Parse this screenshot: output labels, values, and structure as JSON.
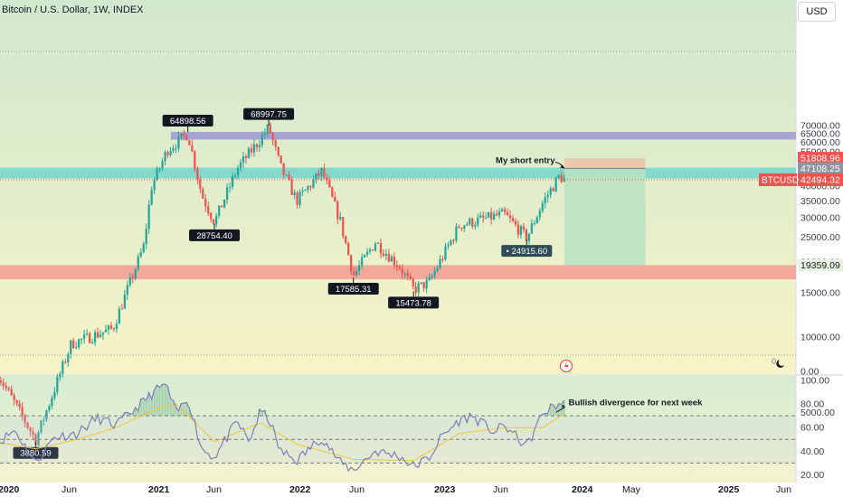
{
  "header": {
    "title": "Bitcoin / U.S. Dollar, 1W, INDEX",
    "currency_button": "USD"
  },
  "colors": {
    "up": "#26a69a",
    "down": "#ef5350",
    "bg_top": "#d2e8cf",
    "bg_bottom": "#f7f4c6",
    "purple_zone": "#a3a0d4",
    "teal_zone": "#7fd8cb",
    "red_zone": "#f2a398",
    "rsi_line": "#7e7fb8",
    "rsi_ma": "#f0c43a"
  },
  "chart_data": [
    {
      "type": "candlestick",
      "title": "Bitcoin / U.S. Dollar, 1W, INDEX",
      "y_scale": "log",
      "y_axis_ticks": [
        "70000.00",
        "65000.00",
        "60000.00",
        "55000.00",
        "50000.00",
        "45000.00",
        "40000.00",
        "35000.00",
        "30000.00",
        "25000.00",
        "20000.00",
        "15000.00",
        "10000.00",
        "5000.00",
        "0.00"
      ],
      "x_axis_labels": [
        "2020",
        "Jun",
        "2021",
        "Jun",
        "2022",
        "Jun",
        "2023",
        "Jun",
        "2024",
        "May",
        "2025",
        "Jun"
      ],
      "price_path": [
        [
          "2019-12-01",
          7400
        ],
        [
          "2020-03-15",
          3880.59
        ],
        [
          "2020-06-15",
          9400
        ],
        [
          "2020-10-01",
          10800
        ],
        [
          "2020-12-20",
          23000
        ],
        [
          "2021-01-10",
          40000
        ],
        [
          "2021-02-20",
          56000
        ],
        [
          "2021-04-14",
          64898.56
        ],
        [
          "2021-05-20",
          37000
        ],
        [
          "2021-06-22",
          28754.4
        ],
        [
          "2021-08-20",
          47000
        ],
        [
          "2021-10-20",
          62000
        ],
        [
          "2021-11-10",
          68997.75
        ],
        [
          "2021-12-10",
          48000
        ],
        [
          "2022-01-22",
          35000
        ],
        [
          "2022-03-28",
          46000
        ],
        [
          "2022-05-15",
          29000
        ],
        [
          "2022-06-18",
          17585.31
        ],
        [
          "2022-08-14",
          24000
        ],
        [
          "2022-10-15",
          19200
        ],
        [
          "2022-11-21",
          15473.78
        ],
        [
          "2022-12-31",
          16500
        ],
        [
          "2023-03-20",
          28000
        ],
        [
          "2023-07-14",
          31000
        ],
        [
          "2023-09-11",
          24915.6
        ],
        [
          "2023-10-23",
          34500
        ],
        [
          "2023-12-05",
          44000
        ],
        [
          "2023-12-18",
          42494.32
        ]
      ],
      "high_low_labels": [
        {
          "date": "2020-03-15",
          "value": 3880.59,
          "label": "3880.59",
          "position": "below"
        },
        {
          "date": "2021-04-14",
          "value": 64898.56,
          "label": "64898.56",
          "position": "above"
        },
        {
          "date": "2021-06-22",
          "value": 28754.4,
          "label": "28754.40",
          "position": "below"
        },
        {
          "date": "2021-11-10",
          "value": 68997.75,
          "label": "68997.75",
          "position": "above"
        },
        {
          "date": "2022-06-18",
          "value": 17585.31,
          "label": "17585.31",
          "position": "below"
        },
        {
          "date": "2022-11-21",
          "value": 15473.78,
          "label": "15473.78",
          "position": "below"
        },
        {
          "date": "2023-09-11",
          "value": 24915.6,
          "label": "24915.60",
          "position": "below"
        }
      ],
      "zones": [
        {
          "name": "resistance-high",
          "from": 61500,
          "to": 66000,
          "start": "2021-03-01",
          "end": "right"
        },
        {
          "name": "short-entry-zone",
          "from": 43000,
          "to": 47500,
          "start": "left",
          "end": "right"
        },
        {
          "name": "support-zone",
          "from": 17000,
          "to": 19359.09,
          "start": "left",
          "end": "right"
        }
      ],
      "short_position": {
        "start": "2023-12-18",
        "end": "2024-07-15",
        "entry": 47108.25,
        "stop": 51808.96,
        "target": 19359.09
      },
      "price_axis_labels": [
        {
          "value": 51808.96,
          "label": "51808.96",
          "style": "stop"
        },
        {
          "value": 47108.25,
          "label": "47108.25",
          "style": "entry"
        },
        {
          "ticker": "BTCUSD",
          "value": 42494.32,
          "label": "42494.32",
          "style": "current"
        },
        {
          "value": 19359.09,
          "label": "19359.09",
          "style": "target"
        }
      ],
      "annotations": [
        {
          "text": "My short entry",
          "date": "2023-12-18",
          "value": 47108.25
        }
      ]
    },
    {
      "type": "line",
      "title": "",
      "ylim": [
        20,
        100
      ],
      "y_axis_ticks": [
        "100.00",
        "80.00",
        "60.00",
        "40.00",
        "20.00"
      ],
      "levels": [
        70,
        50,
        30
      ],
      "series": [
        {
          "values": [
            [
              "2019-12-01",
              45
            ],
            [
              "2020-01-20",
              58
            ],
            [
              "2020-03-15",
              30
            ],
            [
              "2020-05-01",
              52
            ],
            [
              "2020-07-01",
              55
            ],
            [
              "2020-08-20",
              68
            ],
            [
              "2020-10-10",
              62
            ],
            [
              "2020-12-20",
              82
            ],
            [
              "2021-01-15",
              90
            ],
            [
              "2021-02-15",
              97
            ],
            [
              "2021-03-15",
              72
            ],
            [
              "2021-04-14",
              85
            ],
            [
              "2021-05-20",
              42
            ],
            [
              "2021-06-22",
              35
            ],
            [
              "2021-08-20",
              65
            ],
            [
              "2021-09-20",
              48
            ],
            [
              "2021-10-20",
              74
            ],
            [
              "2021-11-10",
              68
            ],
            [
              "2021-12-10",
              40
            ],
            [
              "2022-01-22",
              32
            ],
            [
              "2022-03-28",
              52
            ],
            [
              "2022-05-15",
              30
            ],
            [
              "2022-06-18",
              24
            ],
            [
              "2022-08-14",
              40
            ],
            [
              "2022-10-15",
              36
            ],
            [
              "2022-11-21",
              27
            ],
            [
              "2022-12-31",
              34
            ],
            [
              "2023-02-01",
              52
            ],
            [
              "2023-03-20",
              66
            ],
            [
              "2023-04-20",
              70
            ],
            [
              "2023-06-20",
              56
            ],
            [
              "2023-07-14",
              62
            ],
            [
              "2023-09-11",
              44
            ],
            [
              "2023-10-23",
              72
            ],
            [
              "2023-11-20",
              78
            ],
            [
              "2023-12-18",
              82
            ]
          ]
        },
        {
          "values": [
            [
              "2019-12-01",
              48
            ],
            [
              "2020-03-15",
              42
            ],
            [
              "2020-07-01",
              50
            ],
            [
              "2020-10-10",
              60
            ],
            [
              "2021-01-15",
              75
            ],
            [
              "2021-03-15",
              80
            ],
            [
              "2021-06-22",
              48
            ],
            [
              "2021-10-20",
              64
            ],
            [
              "2022-01-22",
              46
            ],
            [
              "2022-06-18",
              33
            ],
            [
              "2022-11-21",
              32
            ],
            [
              "2023-03-20",
              55
            ],
            [
              "2023-07-14",
              60
            ],
            [
              "2023-10-23",
              60
            ],
            [
              "2023-12-18",
              72
            ]
          ]
        }
      ],
      "annotations": [
        {
          "text": "Bullish divergence for next week",
          "date": "2023-12-10",
          "value": 82
        }
      ]
    }
  ]
}
